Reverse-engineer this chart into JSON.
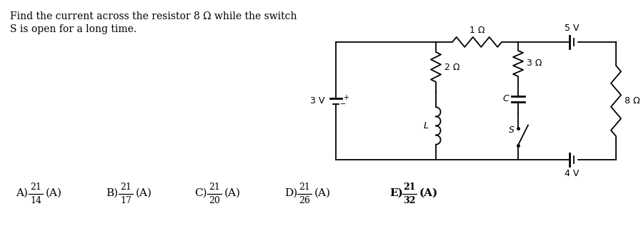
{
  "title_line1": "Find the current across the resistor 8 Ω while the switch",
  "title_line2": "S is open for a long time.",
  "answer_A": {
    "num": 21,
    "den": 14,
    "bold": false
  },
  "answer_B": {
    "num": 21,
    "den": 17,
    "bold": false
  },
  "answer_C": {
    "num": 21,
    "den": 20,
    "bold": false
  },
  "answer_D": {
    "num": 21,
    "den": 26,
    "bold": false
  },
  "answer_E": {
    "num": 21,
    "den": 32,
    "bold": true
  },
  "bg_color": "#ffffff",
  "lw": 1.3,
  "circuit": {
    "3V_label": "3 V",
    "1ohm_label": "1 Ω",
    "2ohm_label": "2 Ω",
    "3ohm_label": "3 Ω",
    "8ohm_label": "8 Ω",
    "L_label": "L",
    "C_label": "C",
    "S_label": "S",
    "5V_label": "5 V",
    "4V_label": "4 V"
  }
}
